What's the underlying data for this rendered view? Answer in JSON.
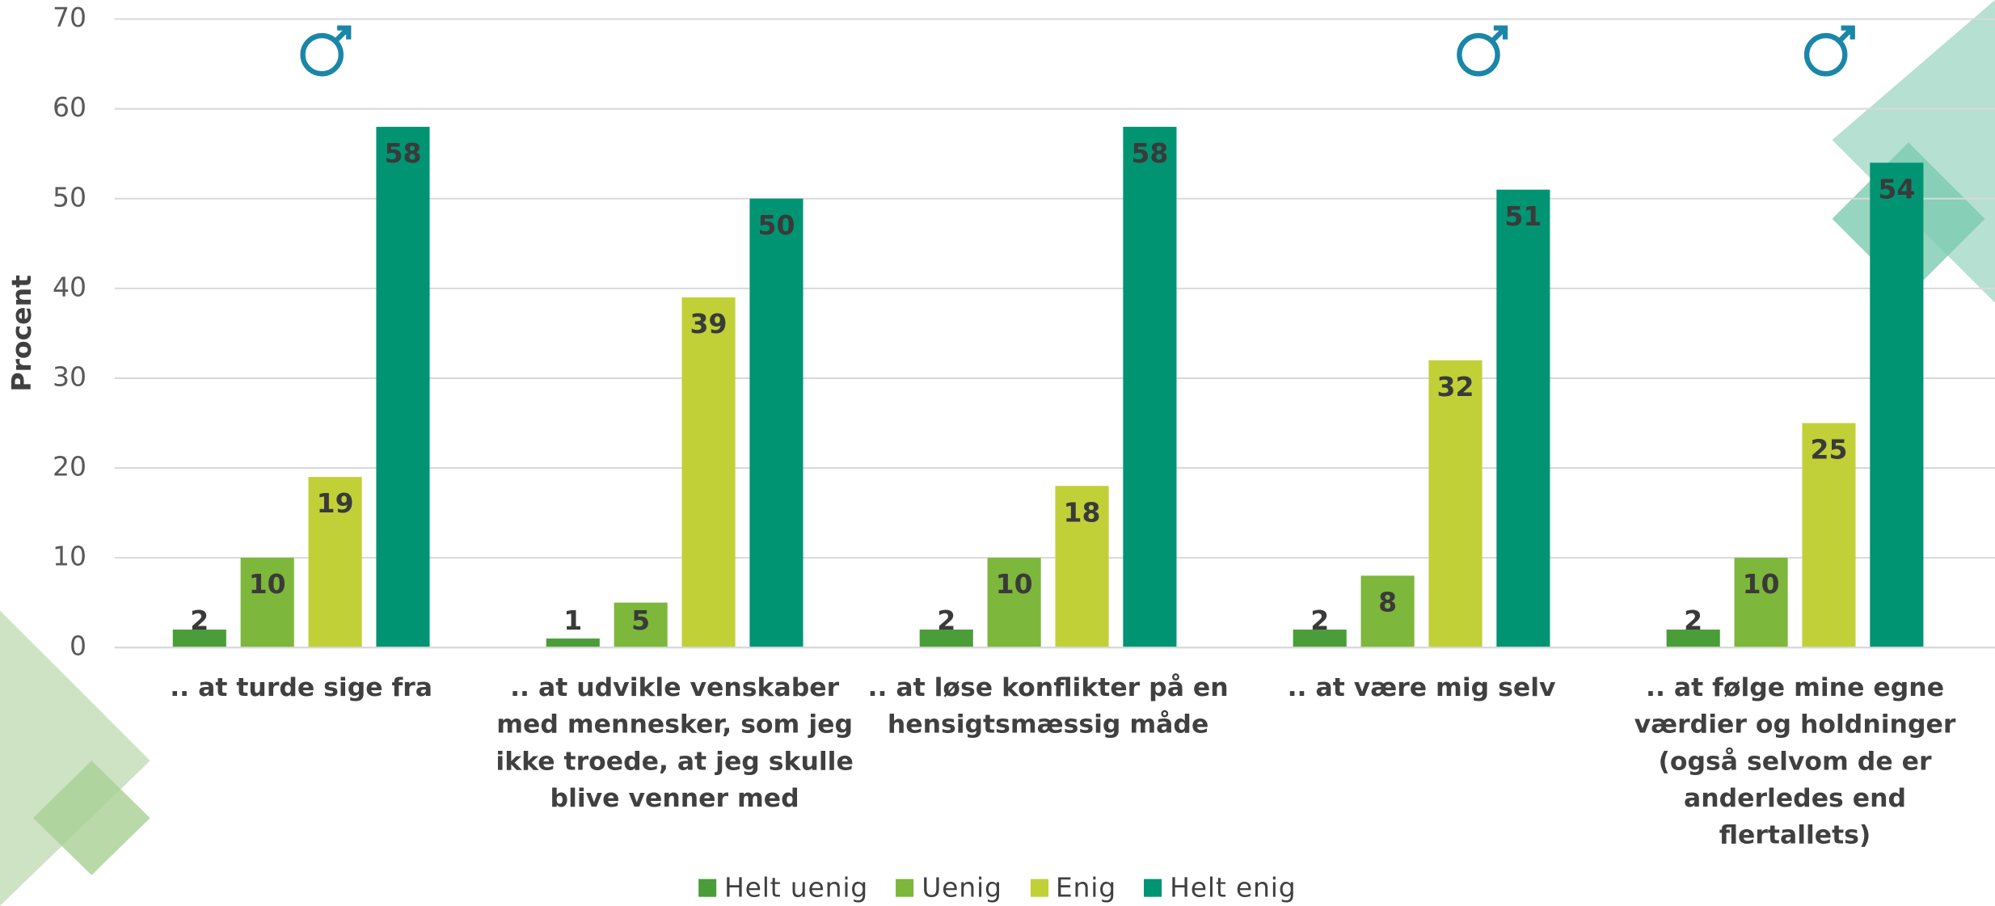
{
  "chart_data": {
    "type": "bar",
    "y_axis_label": "Procent",
    "categories": [
      ".. at turde sige fra",
      ".. at udvikle venskaber med mennesker, som jeg ikke troede, at jeg skulle blive venner med",
      ".. at løse konflikter på en hensigtsmæssig måde",
      ".. at være mig selv",
      ".. at følge mine egne værdier og holdninger (også selvom de er anderledes end flertallets)"
    ],
    "series": [
      {
        "name": "Helt uenig",
        "color": "#4b9d3a",
        "values": [
          2,
          1,
          2,
          2,
          2
        ]
      },
      {
        "name": "Uenig",
        "color": "#7db73b",
        "values": [
          10,
          5,
          10,
          8,
          10
        ]
      },
      {
        "name": "Enig",
        "color": "#c2d037",
        "values": [
          19,
          39,
          18,
          32,
          25
        ]
      },
      {
        "name": "Helt enig",
        "color": "#009473",
        "values": [
          58,
          50,
          58,
          51,
          54
        ]
      }
    ],
    "ylim": [
      0,
      70
    ],
    "yticks": [
      0,
      10,
      20,
      30,
      40,
      50,
      60,
      70
    ],
    "grid": true,
    "legend": "bottom"
  }
}
